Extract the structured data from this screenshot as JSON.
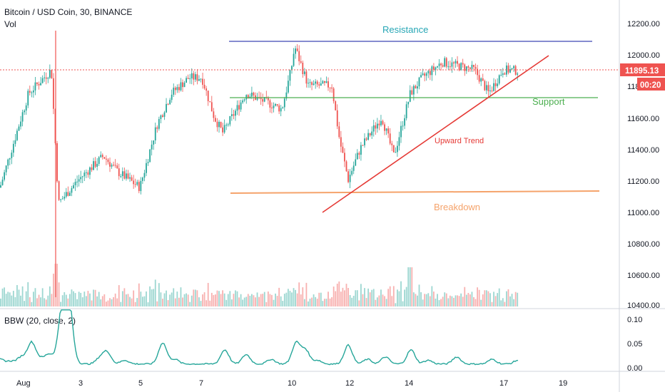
{
  "header": {
    "symbol_line": "Bitcoin / USD Coin, 30, BINANCE",
    "volume_label": "Vol"
  },
  "indicator": {
    "label": "BBW (20, close, 2)",
    "ticks": [
      "0.10",
      "0.05",
      "0.00"
    ]
  },
  "price_axis": {
    "ticks": [
      "12200.00",
      "12000.00",
      "11800.00",
      "11600.00",
      "11400.00",
      "11200.00",
      "11000.00",
      "10800.00",
      "10600.00",
      "10400.00"
    ],
    "current_price": "11895.13",
    "countdown": "00:20"
  },
  "time_axis": {
    "ticks": [
      "Aug",
      "3",
      "5",
      "7",
      "10",
      "12",
      "14",
      "17",
      "19"
    ]
  },
  "annotations": {
    "resistance": "Resistance",
    "support": "Support",
    "upward_trend": "Upward Trend",
    "breakdown": "Breakdown"
  },
  "colors": {
    "up": "#26a69a",
    "down": "#ef5350",
    "resistance": "#3f46b5",
    "resistance_text": "#26a6b5",
    "support": "#4caf50",
    "trend": "#e53935",
    "breakdown": "#f5a36b",
    "current_price_bg": "#ef5350",
    "bbw_line": "#26a69a",
    "axis_text": "#131722",
    "grid": "#e0e3eb"
  },
  "chart_data": {
    "type": "candlestick",
    "title": "Bitcoin / USD Coin, 30, BINANCE",
    "interval": "30 min",
    "y_range": [
      10400,
      12250
    ],
    "x_range": [
      "Jul 31",
      "Aug 19"
    ],
    "current_price": 11895.13,
    "price_path": [
      [
        "Jul 31",
        11150
      ],
      [
        "Aug 1",
        11750
      ],
      [
        "Aug 2",
        11900
      ],
      [
        "Aug 2.3",
        11050
      ],
      [
        "Aug 3",
        11200
      ],
      [
        "Aug 3.5",
        11350
      ],
      [
        "Aug 4",
        11250
      ],
      [
        "Aug 5",
        11150
      ],
      [
        "Aug 5.5",
        11550
      ],
      [
        "Aug 6",
        11750
      ],
      [
        "Aug 6.5",
        11850
      ],
      [
        "Aug 7",
        11850
      ],
      [
        "Aug 7.5",
        11600
      ],
      [
        "Aug 8",
        11500
      ],
      [
        "Aug 8.5",
        11750
      ],
      [
        "Aug 9",
        11700
      ],
      [
        "Aug 9.5",
        11650
      ],
      [
        "Aug 10",
        11900
      ],
      [
        "Aug 10.2",
        12050
      ],
      [
        "Aug 10.6",
        11800
      ],
      [
        "Aug 11",
        11800
      ],
      [
        "Aug 11.5",
        11450
      ],
      [
        "Aug 12",
        11200
      ],
      [
        "Aug 12.5",
        11400
      ],
      [
        "Aug 13",
        11600
      ],
      [
        "Aug 13.5",
        11350
      ],
      [
        "Aug 14",
        11750
      ],
      [
        "Aug 14.5",
        11850
      ],
      [
        "Aug 15",
        11950
      ],
      [
        "Aug 16",
        11900
      ],
      [
        "Aug 16.5",
        11750
      ],
      [
        "Aug 17",
        11900
      ],
      [
        "Aug 17.5",
        11895
      ]
    ],
    "levels": {
      "resistance": 12080,
      "support": 11720,
      "breakdown": 11115
    },
    "trend_line": {
      "from": [
        "Aug 12",
        11000
      ],
      "to": [
        "Aug 18.5",
        11990
      ]
    },
    "bbw": {
      "y_range": [
        0,
        0.12
      ],
      "ticks": [
        0.1,
        0.05,
        0
      ],
      "peak": 0.11,
      "last": 0.01
    }
  }
}
